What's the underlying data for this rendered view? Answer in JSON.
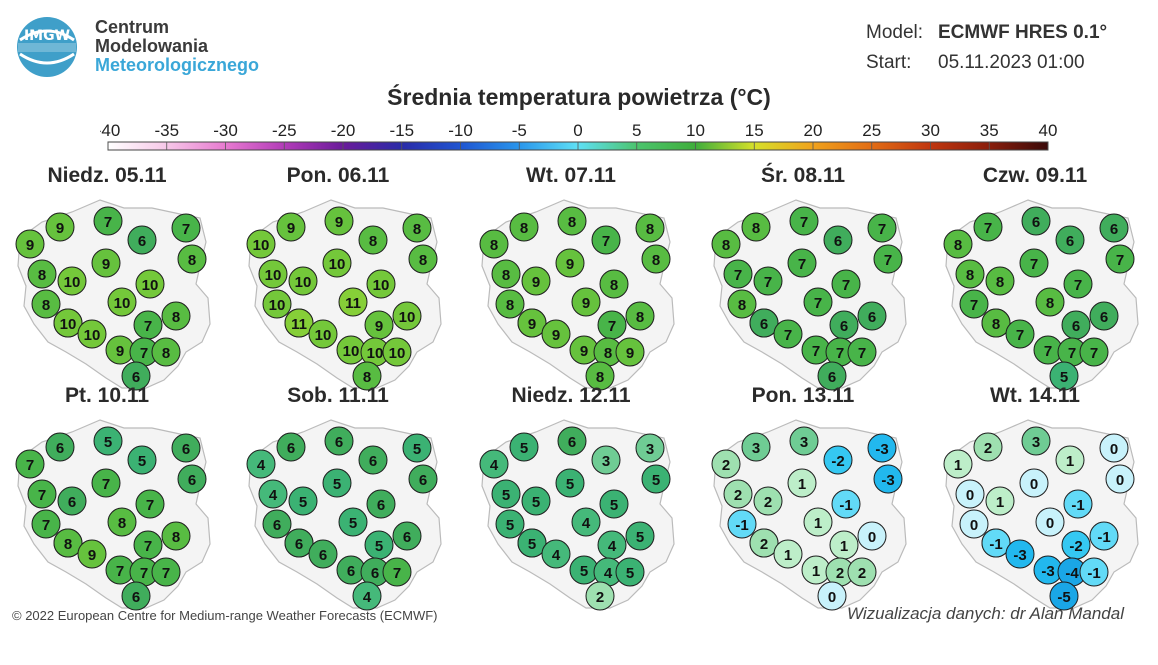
{
  "header": {
    "logo_text": "IMGW",
    "org_line1": "Centrum",
    "org_line2": "Modelowania",
    "org_line3": "Meteorologicznego",
    "model_label": "Model:",
    "model_value": "ECMWF HRES 0.1°",
    "start_label": "Start:",
    "start_value": "05.11.2023 01:00"
  },
  "title": "Średnia temperatura powietrza (°C)",
  "colorbar": {
    "ticks": [
      "-40",
      "-35",
      "-30",
      "-25",
      "-20",
      "-15",
      "-10",
      "-5",
      "0",
      "5",
      "10",
      "15",
      "20",
      "25",
      "30",
      "35",
      "40"
    ],
    "range": [
      -40,
      40
    ],
    "stops": [
      {
        "v": -40,
        "c": "#ffffff"
      },
      {
        "v": -35,
        "c": "#f6c7e8"
      },
      {
        "v": -30,
        "c": "#e77ad0"
      },
      {
        "v": -25,
        "c": "#b23bb8"
      },
      {
        "v": -20,
        "c": "#6a1b9a"
      },
      {
        "v": -15,
        "c": "#2a2ba8"
      },
      {
        "v": -10,
        "c": "#1f55d1"
      },
      {
        "v": -5,
        "c": "#2a96ec"
      },
      {
        "v": 0,
        "c": "#5ee0f5"
      },
      {
        "v": 5,
        "c": "#4cc46e"
      },
      {
        "v": 10,
        "c": "#3fae3b"
      },
      {
        "v": 15,
        "c": "#d6e02a"
      },
      {
        "v": 20,
        "c": "#f0a21c"
      },
      {
        "v": 25,
        "c": "#e26c14"
      },
      {
        "v": 30,
        "c": "#c0360f"
      },
      {
        "v": 35,
        "c": "#8a1e0c"
      },
      {
        "v": 40,
        "c": "#3a0a0a"
      }
    ]
  },
  "days": [
    {
      "label": "Niedz. 05.11",
      "values": [
        9,
        9,
        7,
        6,
        7,
        8,
        8,
        10,
        9,
        10,
        8,
        10,
        8,
        8,
        10,
        7,
        10,
        9,
        7,
        8,
        6
      ]
    },
    {
      "label": "Pon. 06.11",
      "values": [
        10,
        9,
        9,
        8,
        8,
        8,
        10,
        10,
        10,
        10,
        10,
        11,
        10,
        10,
        11,
        9,
        10,
        10,
        10,
        10,
        8
      ]
    },
    {
      "label": "Wt. 07.11",
      "values": [
        8,
        8,
        8,
        7,
        8,
        8,
        8,
        9,
        9,
        8,
        8,
        9,
        8,
        8,
        9,
        7,
        9,
        9,
        8,
        9,
        8
      ]
    },
    {
      "label": "Śr. 08.11",
      "values": [
        8,
        8,
        7,
        6,
        7,
        7,
        7,
        7,
        7,
        7,
        8,
        7,
        7,
        6,
        6,
        6,
        7,
        7,
        7,
        7,
        6
      ]
    },
    {
      "label": "Czw. 09.11",
      "values": [
        8,
        7,
        6,
        6,
        6,
        7,
        8,
        8,
        7,
        7,
        7,
        8,
        6,
        6,
        8,
        6,
        7,
        7,
        7,
        7,
        5
      ]
    },
    {
      "label": "Pt. 10.11",
      "values": [
        7,
        6,
        5,
        5,
        6,
        6,
        7,
        6,
        7,
        7,
        7,
        8,
        7,
        8,
        8,
        7,
        9,
        7,
        7,
        7,
        6
      ]
    },
    {
      "label": "Sob. 11.11",
      "values": [
        4,
        6,
        6,
        6,
        5,
        6,
        4,
        5,
        5,
        6,
        6,
        5,
        5,
        6,
        6,
        5,
        6,
        6,
        6,
        7,
        4
      ]
    },
    {
      "label": "Niedz. 12.11",
      "values": [
        4,
        5,
        6,
        3,
        3,
        5,
        5,
        5,
        5,
        5,
        5,
        4,
        4,
        5,
        5,
        4,
        4,
        5,
        4,
        5,
        2
      ]
    },
    {
      "label": "Pon. 13.11",
      "values": [
        2,
        3,
        3,
        -2,
        -3,
        -3,
        2,
        2,
        1,
        -1,
        -1,
        1,
        0,
        0,
        2,
        1,
        1,
        1,
        2,
        2,
        0
      ]
    },
    {
      "label": "Wt. 14.11",
      "values": [
        1,
        2,
        3,
        1,
        0,
        0,
        0,
        1,
        0,
        -1,
        0,
        0,
        -3,
        -1,
        -1,
        -2,
        -3,
        -3,
        -4,
        -1,
        -5
      ]
    }
  ],
  "footer": {
    "copyright": "© 2022 European Centre for Medium-range Weather Forecasts (ECMWF)",
    "credit": "Wizualizacja danych: dr Alan Mandal"
  }
}
